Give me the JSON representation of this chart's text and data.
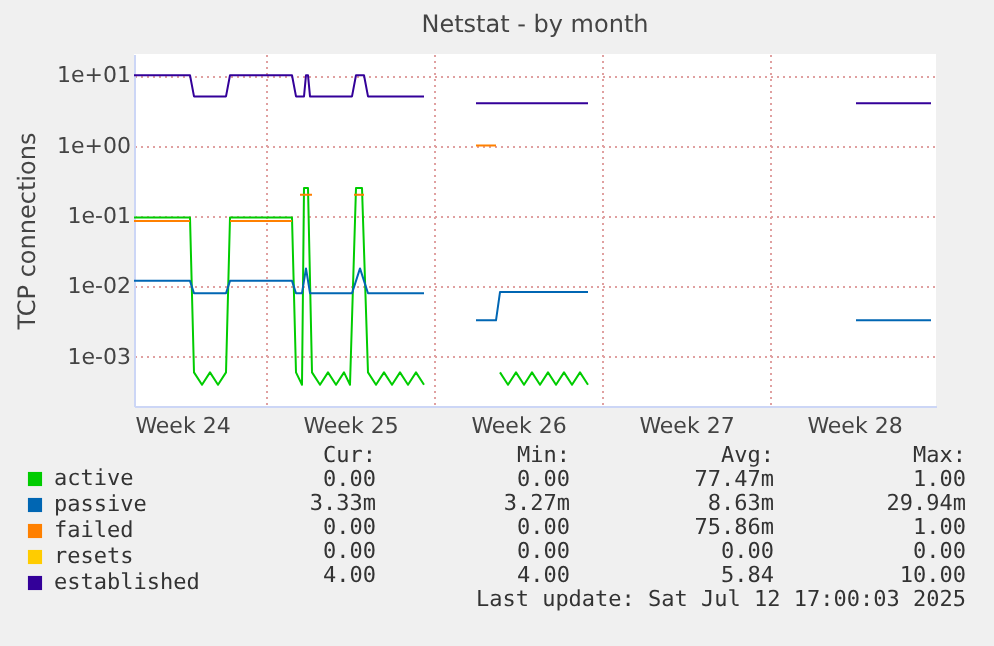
{
  "chart_data": {
    "type": "line",
    "title": "Netstat - by month",
    "ylabel": "TCP connections",
    "xlim": [
      "2025-06-09T12:00",
      "2025-07-12T22:00"
    ],
    "xticks": [
      {
        "value": "2025-06-11T12:00",
        "label": "Week 24"
      },
      {
        "value": "2025-06-15T00:00",
        "label": null
      },
      {
        "value": "2025-06-18T12:00",
        "label": "Week 25"
      },
      {
        "value": "2025-06-22T00:00",
        "label": null
      },
      {
        "value": "2025-06-25T12:00",
        "label": "Week 26"
      },
      {
        "value": "2025-06-29T00:00",
        "label": null
      },
      {
        "value": "2025-07-02T12:00",
        "label": "Week 27"
      },
      {
        "value": "2025-07-06T00:00",
        "label": null
      },
      {
        "value": "2025-07-09T12:00",
        "label": "Week 28"
      }
    ],
    "ylim": [
      0.0002,
      20
    ],
    "yticks": [
      {
        "value": 0.001,
        "label": "1e-03"
      },
      {
        "value": 0.01,
        "label": "1e-02"
      },
      {
        "value": 0.1,
        "label": "1e-01"
      },
      {
        "value": 1,
        "label": "1e+00"
      },
      {
        "value": 10,
        "label": "1e+01"
      }
    ],
    "log": "y",
    "grid": true,
    "legend": "bottom left",
    "series": [
      {
        "name": "active",
        "color": "#00cc00",
        "x": [
          "2025-06-09T12:00",
          "2025-06-11T20:00",
          "2025-06-12T00:00",
          "2025-06-12T08:00",
          "2025-06-12T16:00",
          "2025-06-13T00:00",
          "2025-06-13T08:00",
          "2025-06-13T12:00",
          "2025-06-16T02:00",
          "2025-06-16T06:00",
          "2025-06-16T12:00",
          "2025-06-16T14:00",
          "2025-06-16T18:00",
          "2025-06-16T22:00",
          "2025-06-17T06:00",
          "2025-06-17T14:00",
          "2025-06-17T22:00",
          "2025-06-18T06:00",
          "2025-06-18T12:00",
          "2025-06-18T18:00",
          "2025-06-19T00:00",
          "2025-06-19T06:00",
          "2025-06-19T14:00",
          "2025-06-19T22:00",
          "2025-06-20T06:00",
          "2025-06-20T14:00",
          "2025-06-20T22:00",
          "2025-06-21T06:00",
          "2025-06-21T14:00",
          "2025-06-22T12:00",
          "2025-06-23T18:00",
          "2025-06-24T14:00",
          "2025-06-24T18:00",
          "2025-06-25T02:00",
          "2025-06-25T10:00",
          "2025-06-25T18:00",
          "2025-06-26T02:00",
          "2025-06-26T10:00",
          "2025-06-26T18:00",
          "2025-06-27T02:00",
          "2025-06-27T10:00",
          "2025-06-27T18:00",
          "2025-06-28T02:00",
          "2025-06-28T10:00"
        ],
        "values": [
          0.095,
          0.095,
          0.0006,
          0.0004,
          0.0006,
          0.0004,
          0.0006,
          0.095,
          0.095,
          0.0006,
          0.0004,
          0.25,
          0.25,
          0.0006,
          0.0004,
          0.0006,
          0.0004,
          0.0006,
          0.0004,
          0.25,
          0.25,
          0.0006,
          0.0004,
          0.0006,
          0.0004,
          0.0006,
          0.0004,
          0.0006,
          0.0004,
          null,
          null,
          null,
          0.0006,
          0.0004,
          0.0006,
          0.0004,
          0.0006,
          0.0004,
          0.0006,
          0.0004,
          0.0006,
          0.0004,
          0.0006,
          0.0004
        ]
      },
      {
        "name": "passive",
        "color": "#0066b3",
        "x": [
          "2025-06-09T12:00",
          "2025-06-11T20:00",
          "2025-06-12T00:00",
          "2025-06-13T08:00",
          "2025-06-13T12:00",
          "2025-06-16T02:00",
          "2025-06-16T06:00",
          "2025-06-16T12:00",
          "2025-06-16T16:00",
          "2025-06-16T20:00",
          "2025-06-18T14:00",
          "2025-06-18T18:00",
          "2025-06-18T22:00",
          "2025-06-19T02:00",
          "2025-06-19T06:00",
          "2025-06-21T14:00",
          "2025-06-22T12:00",
          "2025-06-23T18:00",
          "2025-06-24T14:00",
          "2025-06-24T18:00",
          "2025-06-28T10:00",
          "2025-07-02T00:00",
          "2025-07-09T14:00",
          "2025-07-12T17:00"
        ],
        "values": [
          0.012,
          0.012,
          0.008,
          0.008,
          0.012,
          0.012,
          0.008,
          0.008,
          0.018,
          0.008,
          0.008,
          0.012,
          0.018,
          0.012,
          0.008,
          0.008,
          null,
          0.0033,
          0.0033,
          0.0083,
          0.0083,
          null,
          0.0033,
          0.0033
        ]
      },
      {
        "name": "failed",
        "color": "#ff8000",
        "x": [
          "2025-06-09T12:00",
          "2025-06-11T20:00",
          "2025-06-12T12:00",
          "2025-06-13T12:00",
          "2025-06-16T02:00",
          "2025-06-16T07:00",
          "2025-06-16T10:00",
          "2025-06-16T22:00",
          "2025-06-17T12:00",
          "2025-06-18T16:00",
          "2025-06-19T02:00",
          "2025-06-20T00:00",
          "2025-06-23T18:00",
          "2025-06-24T14:00"
        ],
        "values": [
          0.085,
          0.085,
          null,
          0.085,
          0.085,
          null,
          0.2,
          0.2,
          null,
          0.2,
          0.2,
          null,
          1,
          1
        ]
      },
      {
        "name": "resets",
        "color": "#ffcc00"
      },
      {
        "name": "established",
        "color": "#330099",
        "x": [
          "2025-06-09T12:00",
          "2025-06-11T20:00",
          "2025-06-12T00:00",
          "2025-06-13T08:00",
          "2025-06-13T12:00",
          "2025-06-16T02:00",
          "2025-06-16T06:00",
          "2025-06-16T14:00",
          "2025-06-16T16:00",
          "2025-06-16T18:00",
          "2025-06-16T20:00",
          "2025-06-18T14:00",
          "2025-06-18T18:00",
          "2025-06-19T02:00",
          "2025-06-19T06:00",
          "2025-06-21T14:00",
          "2025-06-22T12:00",
          "2025-06-23T18:00",
          "2025-06-28T10:00",
          "2025-07-02T00:00",
          "2025-07-09T14:00",
          "2025-07-12T17:00"
        ],
        "values": [
          10,
          10,
          5,
          5,
          10,
          10,
          5,
          5,
          10,
          10,
          5,
          5,
          10,
          10,
          5,
          5,
          null,
          4,
          4,
          null,
          4,
          4
        ]
      }
    ],
    "annotations": [
      "Cur:",
      "Min:",
      "Avg:",
      "Max:",
      "0.00",
      "0.00",
      "77.47m",
      "1.00",
      "3.33m",
      "3.27m",
      "8.63m",
      "29.94m",
      "0.00",
      "0.00",
      "75.86m",
      "1.00",
      "0.00",
      "0.00",
      "0.00",
      "0.00",
      "4.00",
      "4.00",
      "5.84",
      "10.00",
      "Last update: Sat Jul 12 17:00:03 2025"
    ]
  }
}
